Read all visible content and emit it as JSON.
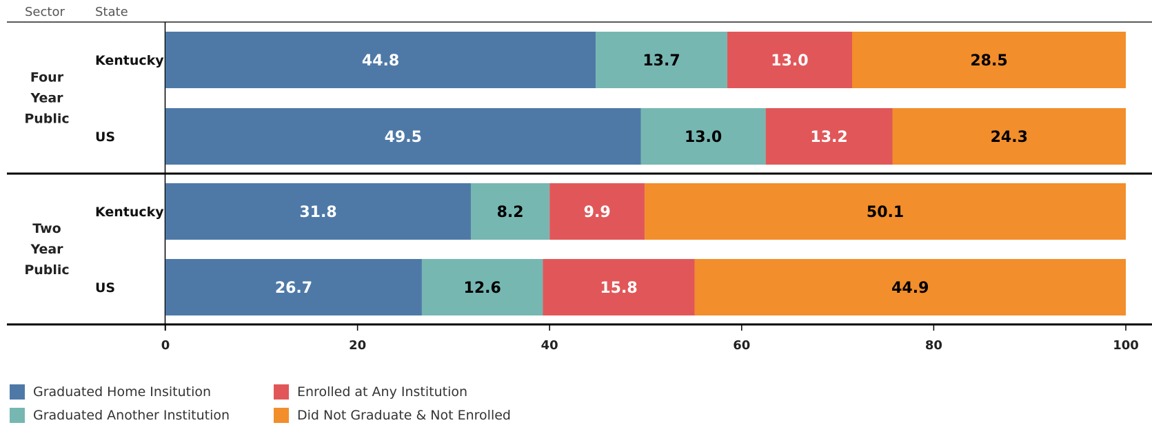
{
  "headers": {
    "sector": "Sector",
    "state": "State"
  },
  "chart_data": {
    "type": "bar",
    "orientation": "horizontal",
    "stacked": true,
    "xlim": [
      0,
      100
    ],
    "x_ticks": [
      0,
      20,
      40,
      60,
      80,
      100
    ],
    "groups": [
      {
        "sector": "Four Year Public",
        "categories": [
          "Kentucky",
          "US"
        ]
      },
      {
        "sector": "Two Year Public",
        "categories": [
          "Kentucky",
          "US"
        ]
      }
    ],
    "series": [
      {
        "name": "Graduated Home Insitution",
        "color": "#4e79a7",
        "label_color": "#ffffff",
        "values": [
          44.8,
          49.5,
          31.8,
          26.7
        ]
      },
      {
        "name": "Graduated Another Institution",
        "color": "#76b7b2",
        "label_color": "#000000",
        "values": [
          13.7,
          13.0,
          8.2,
          12.6
        ]
      },
      {
        "name": "Enrolled at Any Institution",
        "color": "#e15759",
        "label_color": "#ffffff",
        "values": [
          13.0,
          13.2,
          9.9,
          15.8
        ]
      },
      {
        "name": "Did Not Graduate & Not Enrolled",
        "color": "#f28e2b",
        "label_color": "#000000",
        "values": [
          28.5,
          24.3,
          50.1,
          44.9
        ]
      }
    ],
    "grid": false,
    "legend_position": "bottom-left"
  }
}
